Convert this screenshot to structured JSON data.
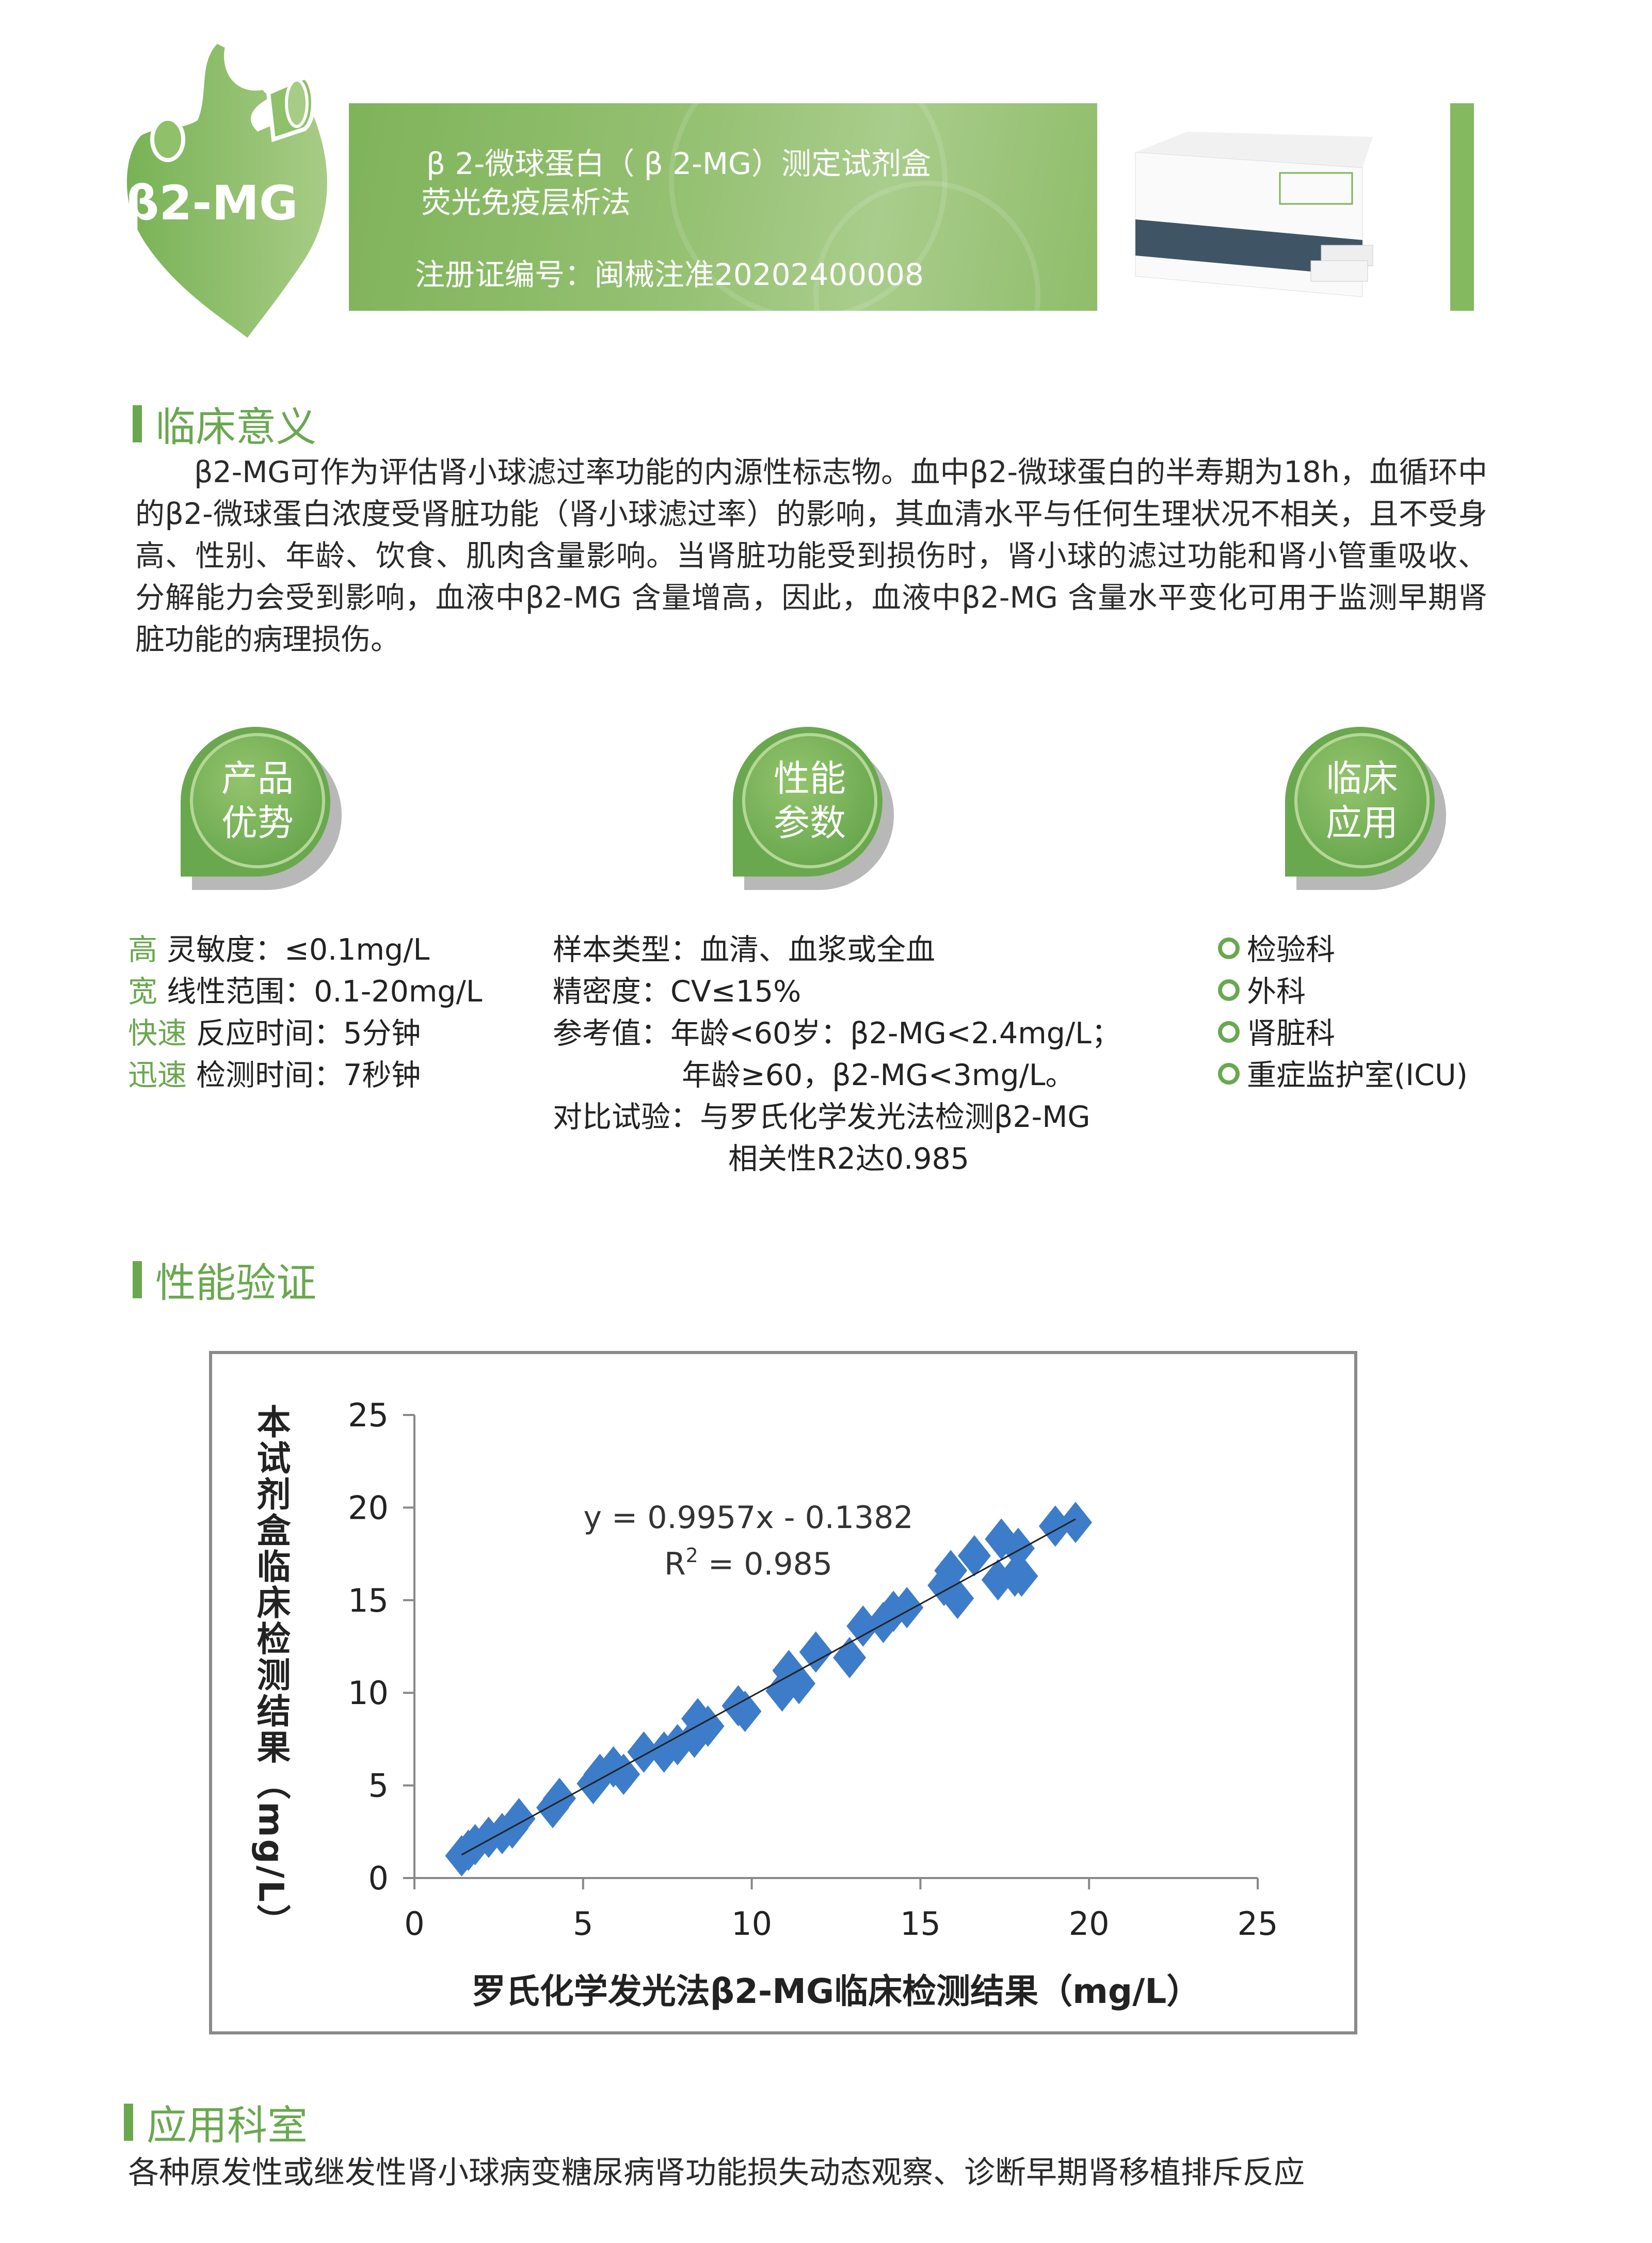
{
  "header": {
    "logo_text": "β2-MG",
    "title_line1": "β 2-微球蛋白（ β 2-MG）测定试剂盒",
    "title_line2": "荧光免疫层析法",
    "registration": "注册证编号：闽械注准20202400008",
    "accent_color": "#6aa84f"
  },
  "clinical_significance": {
    "heading": "临床意义",
    "text": "β2-MG可作为评估肾小球滤过率功能的内源性标志物。血中β2-微球蛋白的半寿期为18h，血循环中的β2-微球蛋白浓度受肾脏功能（肾小球滤过率）的影响，其血清水平与任何生理状况不相关，且不受身高、性别、年龄、饮食、肌肉含量影响。当肾脏功能受到损伤时，肾小球的滤过功能和肾小管重吸收、分解能力会受到影响，血液中β2-MG 含量增高，因此，血液中β2-MG 含量水平变化可用于监测早期肾脏功能的病理损伤。"
  },
  "badges": [
    {
      "line1": "产品",
      "line2": "优势"
    },
    {
      "line1": "性能",
      "line2": "参数"
    },
    {
      "line1": "临床",
      "line2": "应用"
    }
  ],
  "advantages": [
    {
      "key": "高",
      "text": "灵敏度：≤0.1mg/L"
    },
    {
      "key": "宽",
      "text": "线性范围：0.1-20mg/L"
    },
    {
      "key": "快速",
      "text": "反应时间：5分钟"
    },
    {
      "key": "迅速",
      "text": "检测时间：7秒钟"
    }
  ],
  "parameters": [
    "样本类型：血清、血浆或全血",
    "精密度：CV≤15%",
    "参考值：年龄<60岁：β2-MG<2.4mg/L；",
    "年龄≥60，β2-MG<3mg/L。",
    "对比试验：与罗氏化学发光法检测β2-MG",
    "相关性R2达0.985"
  ],
  "applications": [
    "检验科",
    "外科",
    "肾脏科",
    "重症监护室(ICU)"
  ],
  "performance": {
    "heading": "性能验证"
  },
  "chart_data": {
    "type": "scatter",
    "xlabel": "罗氏化学发光法β2-MG临床检测结果（mg/L）",
    "ylabel": "本试剂盒临床检测结果（mg/L）",
    "xlim": [
      0,
      25
    ],
    "ylim": [
      0,
      25
    ],
    "xticks": [
      "0",
      "5",
      "10",
      "15",
      "20",
      "25"
    ],
    "yticks": [
      "0",
      "5",
      "10",
      "15",
      "20",
      "25"
    ],
    "grid": false,
    "marker": "diamond",
    "marker_color": "#3d7cc9",
    "equation": "y = 0.9957x - 0.1382",
    "r2_label": "R",
    "r2_value": " = 0.985",
    "trendline": {
      "slope": 0.9957,
      "intercept": -0.1382,
      "x_range": [
        1.4,
        19.6
      ]
    },
    "points": [
      [
        1.4,
        1.2
      ],
      [
        1.6,
        1.5
      ],
      [
        1.8,
        1.8
      ],
      [
        2.2,
        2.2
      ],
      [
        2.6,
        2.4
      ],
      [
        2.9,
        2.7
      ],
      [
        3.1,
        3.2
      ],
      [
        4.1,
        3.8
      ],
      [
        4.3,
        4.3
      ],
      [
        5.3,
        5.1
      ],
      [
        5.5,
        5.6
      ],
      [
        5.9,
        6.0
      ],
      [
        6.2,
        5.6
      ],
      [
        6.8,
        6.8
      ],
      [
        7.4,
        6.8
      ],
      [
        7.8,
        7.2
      ],
      [
        8.3,
        7.6
      ],
      [
        8.4,
        8.6
      ],
      [
        8.7,
        8.2
      ],
      [
        9.6,
        9.3
      ],
      [
        9.8,
        9.0
      ],
      [
        10.9,
        10.1
      ],
      [
        11.1,
        11.2
      ],
      [
        11.4,
        10.5
      ],
      [
        11.9,
        12.2
      ],
      [
        12.9,
        11.9
      ],
      [
        13.3,
        13.6
      ],
      [
        13.9,
        13.8
      ],
      [
        14.2,
        14.4
      ],
      [
        14.6,
        14.6
      ],
      [
        15.7,
        15.8
      ],
      [
        15.9,
        16.6
      ],
      [
        16.1,
        15.1
      ],
      [
        16.6,
        17.4
      ],
      [
        17.3,
        16.1
      ],
      [
        17.4,
        18.3
      ],
      [
        17.9,
        17.8
      ],
      [
        17.8,
        16.3
      ],
      [
        18.0,
        16.3
      ],
      [
        19.0,
        19.0
      ],
      [
        19.6,
        19.2
      ]
    ]
  },
  "departments": {
    "heading": "应用科室",
    "text": "各种原发性或继发性肾小球病变糖尿病肾功能损失动态观察、诊断早期肾移植排斥反应"
  }
}
